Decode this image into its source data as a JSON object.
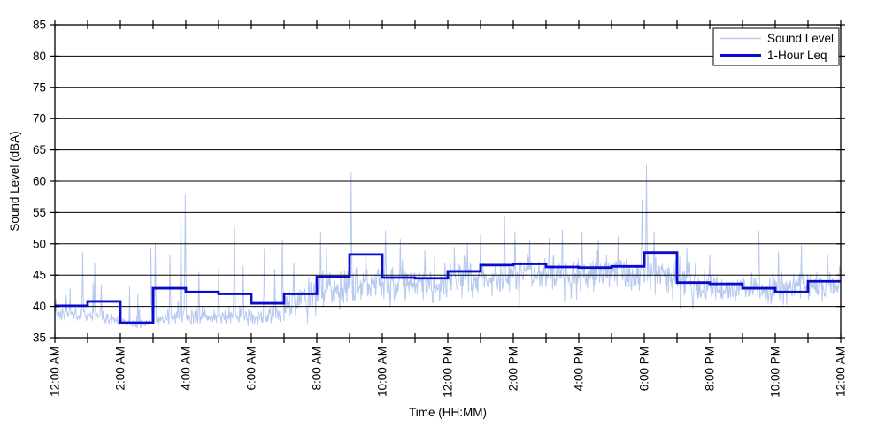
{
  "chart_data": {
    "type": "line",
    "title": "",
    "xlabel": "Time (HH:MM)",
    "ylabel": "Sound Level (dBA)",
    "ylim": [
      35,
      85
    ],
    "xlim_hours": [
      0,
      24
    ],
    "y_ticks": [
      35,
      40,
      45,
      50,
      55,
      60,
      65,
      70,
      75,
      80,
      85
    ],
    "x_major_tick_hours": [
      0,
      2,
      4,
      6,
      8,
      10,
      12,
      14,
      16,
      18,
      20,
      22,
      24
    ],
    "x_tick_labels": [
      "12:00 AM",
      "2:00 AM",
      "4:00 AM",
      "6:00 AM",
      "8:00 AM",
      "10:00 AM",
      "12:00 PM",
      "2:00 PM",
      "4:00 PM",
      "6:00 PM",
      "8:00 PM",
      "10:00 PM",
      "12:00 AM"
    ],
    "x_minor_tick_every_hours": 1,
    "grid": "horizontal-only",
    "legend": {
      "position": "top-right-inside",
      "entries": [
        {
          "label": "Sound Level",
          "color": "#b7c9ef",
          "line_width": 1.5
        },
        {
          "label": "1-Hour Leq",
          "color": "#0a0ccd",
          "line_width": 3
        }
      ]
    },
    "series": [
      {
        "name": "Sound Level",
        "style": "noisy-minute-line",
        "color": "#b7c9ef",
        "points_per_hour": 60,
        "hourly_base": [
          38.7,
          38.2,
          37.0,
          38.2,
          38.4,
          38.4,
          38.2,
          40.8,
          43.0,
          43.3,
          43.8,
          43.5,
          44.3,
          44.8,
          45.3,
          44.8,
          44.8,
          45.2,
          45.0,
          42.8,
          42.8,
          42.3,
          42.8,
          43.3
        ],
        "hourly_amp": [
          0.9,
          0.9,
          0.6,
          1.1,
          1.2,
          1.2,
          1.2,
          2.2,
          2.4,
          2.4,
          2.4,
          2.4,
          2.4,
          2.5,
          2.5,
          2.4,
          2.4,
          2.4,
          2.6,
          2.0,
          2.0,
          2.0,
          2.2,
          2.0
        ],
        "spikes": [
          [
            0.03,
            41.2
          ],
          [
            0.35,
            41.8
          ],
          [
            0.85,
            48.6
          ],
          [
            1.22,
            47.0
          ],
          [
            1.42,
            43.5
          ],
          [
            2.5,
            38.5
          ],
          [
            2.93,
            49.3
          ],
          [
            3.07,
            50.1
          ],
          [
            3.52,
            48.2
          ],
          [
            3.85,
            54.8
          ],
          [
            3.98,
            57.9
          ],
          [
            4.4,
            45.5
          ],
          [
            5.0,
            46.0
          ],
          [
            5.49,
            52.8
          ],
          [
            5.75,
            46.5
          ],
          [
            6.4,
            49.2
          ],
          [
            6.72,
            46.0
          ],
          [
            6.95,
            50.6
          ],
          [
            7.3,
            47.0
          ],
          [
            8.12,
            51.8
          ],
          [
            8.3,
            49.5
          ],
          [
            9.05,
            61.4
          ],
          [
            9.5,
            49.0
          ],
          [
            10.1,
            52.2
          ],
          [
            10.55,
            50.8
          ],
          [
            11.3,
            49.0
          ],
          [
            12.2,
            49.5
          ],
          [
            12.6,
            50.0
          ],
          [
            13.0,
            51.5
          ],
          [
            13.73,
            54.5
          ],
          [
            14.05,
            52.0
          ],
          [
            14.5,
            50.5
          ],
          [
            15.1,
            51.0
          ],
          [
            15.5,
            52.3
          ],
          [
            16.1,
            51.8
          ],
          [
            16.6,
            50.5
          ],
          [
            17.2,
            51.3
          ],
          [
            17.93,
            57.0
          ],
          [
            18.07,
            62.6
          ],
          [
            18.3,
            52.0
          ],
          [
            19.3,
            49.3
          ],
          [
            20.0,
            48.3
          ],
          [
            21.5,
            52.1
          ],
          [
            22.1,
            48.8
          ],
          [
            22.8,
            49.8
          ],
          [
            23.6,
            48.3
          ]
        ],
        "noise": {
          "seed": 12345,
          "quiet_spike_prob": 0.02,
          "quiet_spike_mag": 6.5,
          "busy_spike_prob": 0.09,
          "busy_spike_mag": 3.5,
          "busy_dip_prob": 0.05,
          "busy_dip_mag": 3.0,
          "busy_amp_threshold": 1.5,
          "value_min": 35.8,
          "value_max": 84.0
        }
      },
      {
        "name": "1-Hour Leq",
        "style": "step",
        "color": "#0a0ccd",
        "hourly_values": [
          40.1,
          40.8,
          37.4,
          42.9,
          42.3,
          42.0,
          40.5,
          42.0,
          44.7,
          48.3,
          44.6,
          44.5,
          45.6,
          46.6,
          46.8,
          46.3,
          46.2,
          46.4,
          48.6,
          43.8,
          43.6,
          42.9,
          42.3,
          44.0
        ]
      }
    ],
    "colors": {
      "background": "#ffffff",
      "axis": "#000000",
      "grid": "#000000",
      "tick": "#000000",
      "text": "#000000",
      "legend_background": "#ffffff",
      "legend_border": "#000000"
    }
  }
}
